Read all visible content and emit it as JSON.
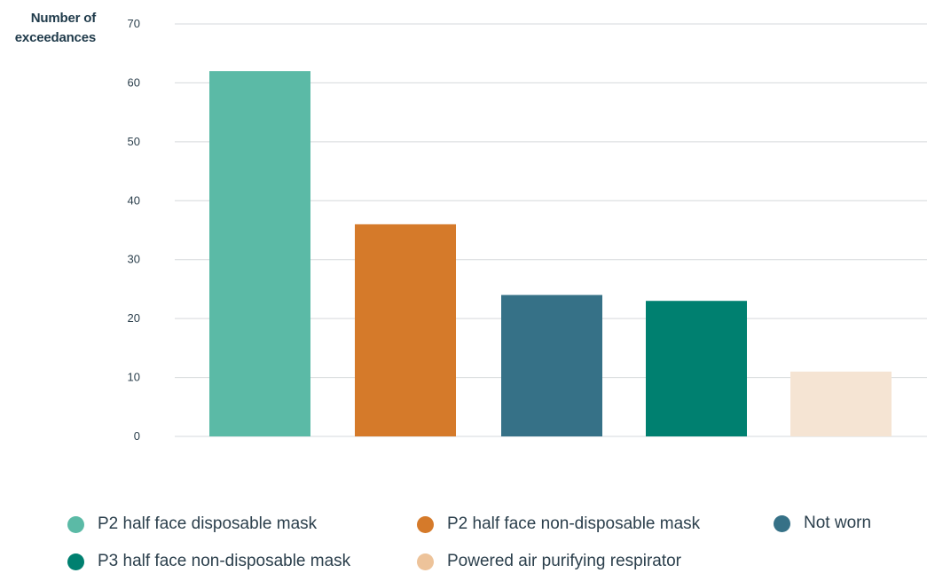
{
  "chart_data": {
    "type": "bar",
    "ylabel": "Number of exceedances",
    "xlabel": "",
    "title": "",
    "ylim": [
      0,
      70
    ],
    "yticks": [
      0,
      10,
      20,
      30,
      40,
      50,
      60,
      70
    ],
    "grid": true,
    "legend_position": "bottom",
    "categories": [
      "P2 half face disposable mask",
      "P2 half face non-disposable mask",
      "Not worn",
      "P3 half face non-disposable mask",
      "Powered air purifying respirator"
    ],
    "values": [
      62,
      36,
      24,
      23,
      11
    ],
    "colors": [
      "#5bbaa6",
      "#d57a2a",
      "#367187",
      "#008070",
      "#f5e4d3"
    ],
    "legend_colors": [
      "#5bbaa6",
      "#d57a2a",
      "#367187",
      "#008070",
      "#edc39a"
    ]
  }
}
